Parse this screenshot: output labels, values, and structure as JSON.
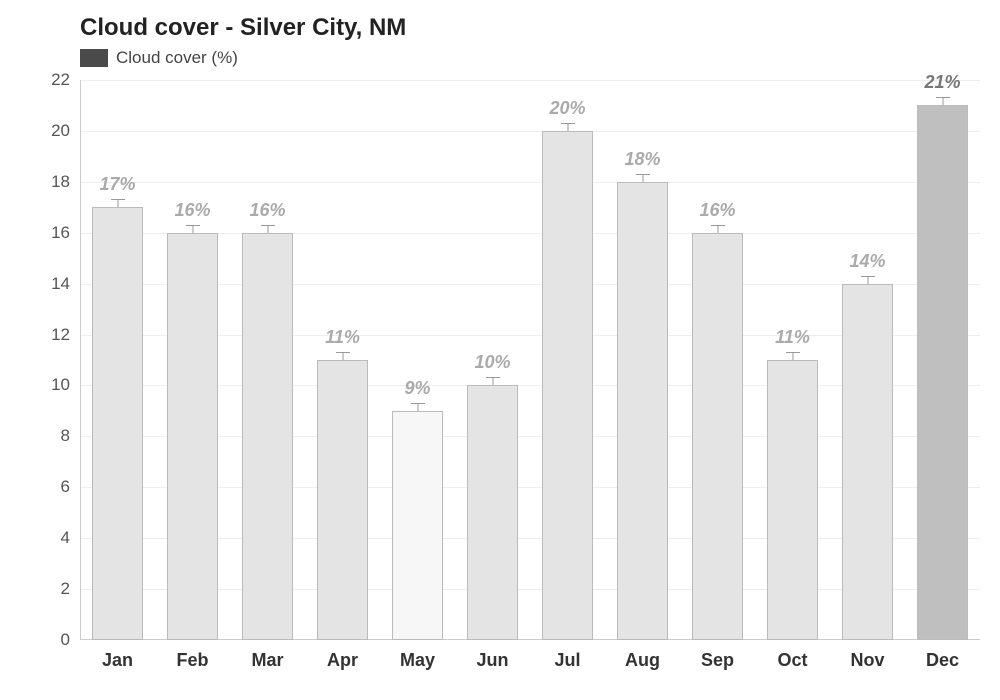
{
  "chart": {
    "type": "bar",
    "title": "Cloud cover - Silver City, NM",
    "legend_label": "Cloud cover (%)",
    "legend_swatch_color": "#4a4a4a",
    "background_color": "#ffffff",
    "grid_color": "#eeeeee",
    "axis_color": "#cccccc",
    "title_color": "#222222",
    "title_fontsize": 24,
    "legend_fontsize": 17,
    "ylim": [
      0,
      22
    ],
    "ytick_step": 2,
    "ytick_fontsize": 17,
    "ytick_color": "#555555",
    "xtick_fontsize": 18,
    "xtick_color": "#333333",
    "bar_width_ratio": 0.68,
    "bar_border_color": "#bbbbbb",
    "value_label_fontsize": 18,
    "value_label_color_normal": "#aaaaaa",
    "value_label_color_max": "#777777",
    "whisker_height": 8,
    "whisker_cap_width": 14,
    "categories": [
      "Jan",
      "Feb",
      "Mar",
      "Apr",
      "May",
      "Jun",
      "Jul",
      "Aug",
      "Sep",
      "Oct",
      "Nov",
      "Dec"
    ],
    "values": [
      17,
      16,
      16,
      11,
      9,
      10,
      20,
      18,
      16,
      11,
      14,
      21
    ],
    "value_labels": [
      "17%",
      "16%",
      "16%",
      "11%",
      "9%",
      "10%",
      "20%",
      "18%",
      "16%",
      "11%",
      "14%",
      "21%"
    ],
    "min_value": 9,
    "max_value": 21,
    "bar_fill_min": "#f7f7f7",
    "bar_fill_normal": "#e4e4e4",
    "bar_fill_max": "#bfbfbf"
  }
}
